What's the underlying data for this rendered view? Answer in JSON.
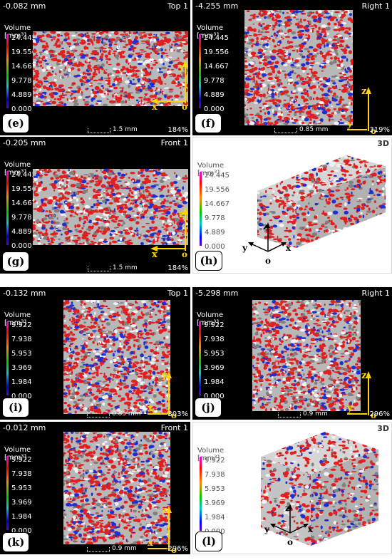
{
  "colors": {
    "legend_gradient": [
      "#ff00ff",
      "#ff0000",
      "#ff8800",
      "#00cc00",
      "#00cccc",
      "#0000ff",
      "#6600cc"
    ],
    "specimen_gray": "#b8b8b8",
    "pore_red": "#e02020",
    "pore_blue": "#2030d0",
    "axis_yellow": "#ffd400"
  },
  "top_section": {
    "legend_title": "Volume [mm³]",
    "legend_ticks": [
      "24.445",
      "19.556",
      "14.667",
      "9.778",
      "4.889",
      "0.000"
    ],
    "legend_ticks_e": [
      "24.445",
      "19.556",
      "14.667",
      "9.778",
      "4.889",
      "0.000"
    ],
    "legend_ticks_g": [
      "24.445",
      "19.556",
      "14.667",
      "9.778",
      "4.889",
      "0.000"
    ],
    "panels": {
      "e": {
        "depth": "-0.082 mm",
        "view": "Top 1",
        "scale": "1.5 mm",
        "zoom": "184%",
        "label": "(e)",
        "axis_h": "x",
        "axis_v": "y",
        "origin": "o"
      },
      "f": {
        "depth": "-4.255 mm",
        "view": "Right 1",
        "scale": "0.85 mm",
        "zoom": "319%",
        "label": "(f)",
        "axis_h": "y",
        "axis_v": "z",
        "origin": "o"
      },
      "g": {
        "depth": "-0.205 mm",
        "view": "Front 1",
        "scale": "1.5 mm",
        "zoom": "184%",
        "label": "(g)",
        "axis_h": "x",
        "axis_v": "z",
        "origin": "o"
      },
      "h": {
        "view": "3D",
        "label": "(h)",
        "axis_x": "x",
        "axis_y": "y",
        "axis_z": "z",
        "origin": "o"
      }
    }
  },
  "bottom_section": {
    "legend_title": "Volume [mm³]",
    "legend_ticks": [
      "9.922",
      "7.938",
      "5.953",
      "3.969",
      "1.984",
      "0.000"
    ],
    "panels": {
      "i": {
        "depth": "-0.132 mm",
        "view": "Top 1",
        "scale": "0.85 mm",
        "zoom": "303%",
        "label": "(i)",
        "axis_h": "x",
        "axis_v": "y",
        "origin": "o"
      },
      "j": {
        "depth": "-5.298 mm",
        "view": "Right 1",
        "scale": "0.9 mm",
        "zoom": "296%",
        "label": "(j)",
        "axis_h": "y",
        "axis_v": "z",
        "origin": "o"
      },
      "k": {
        "depth": "-0.012 mm",
        "view": "Front 1",
        "scale": "0.9 mm",
        "zoom": "296%",
        "label": "(k)",
        "axis_h": "x",
        "axis_v": "z",
        "origin": "o"
      },
      "l": {
        "view": "3D",
        "label": "(l)",
        "axis_x": "x",
        "axis_y": "y",
        "axis_z": "z",
        "origin": "o"
      }
    }
  }
}
